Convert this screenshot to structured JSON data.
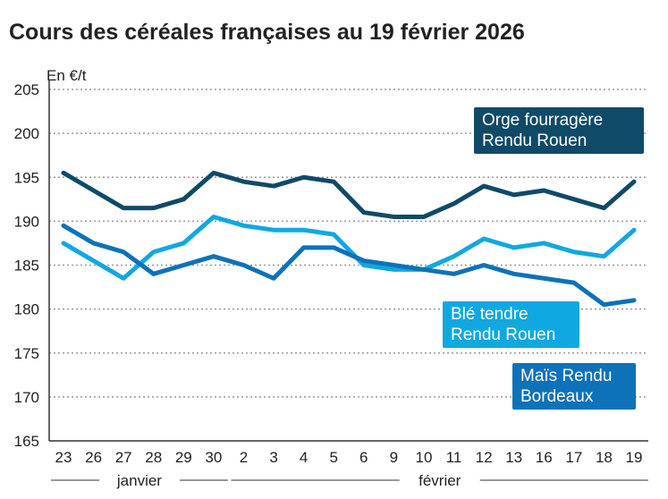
{
  "chart_data": {
    "type": "line",
    "title": "Cours des céréales françaises au 19 février 2026",
    "ylabel": "En €/t",
    "ylim": [
      165,
      205
    ],
    "yticks": [
      165,
      170,
      175,
      180,
      185,
      190,
      195,
      200,
      205
    ],
    "categories": [
      "23",
      "26",
      "27",
      "28",
      "29",
      "30",
      "2",
      "3",
      "4",
      "5",
      "6",
      "9",
      "10",
      "11",
      "12",
      "13",
      "16",
      "17",
      "18",
      "19"
    ],
    "month_labels": [
      {
        "label": "janvier",
        "from": 0,
        "to": 5
      },
      {
        "label": "février",
        "from": 6,
        "to": 19
      }
    ],
    "grid": true,
    "series": [
      {
        "name": "Orge fourragère Rendu Rouen",
        "color": "#0f4a68",
        "values": [
          195.5,
          193.5,
          191.5,
          191.5,
          192.5,
          195.5,
          194.5,
          194,
          195,
          194.5,
          191,
          190.5,
          190.5,
          192,
          194,
          193,
          193.5,
          192.5,
          191.5,
          194.5
        ]
      },
      {
        "name": "Blé tendre Rendu Rouen",
        "color": "#10a8e0",
        "values": [
          187.5,
          185.5,
          183.5,
          186.5,
          187.5,
          190.5,
          189.5,
          189,
          189,
          188.5,
          185,
          184.5,
          184.5,
          186,
          188,
          187,
          187.5,
          186.5,
          186,
          189
        ]
      },
      {
        "name": "Maïs Rendu Bordeaux",
        "color": "#0d72b8",
        "values": [
          189.5,
          187.5,
          186.5,
          184,
          185,
          186,
          185,
          183.5,
          187,
          187,
          185.5,
          185,
          184.5,
          184,
          185,
          184,
          183.5,
          183,
          180.5,
          181
        ]
      }
    ]
  }
}
